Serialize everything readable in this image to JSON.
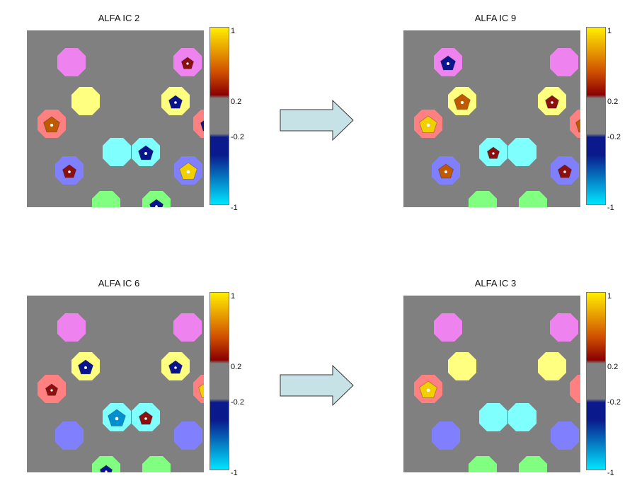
{
  "panels": [
    {
      "title": "ALFA IC 2"
    },
    {
      "title": "ALFA IC 9"
    },
    {
      "title": "ALFA IC 6"
    },
    {
      "title": "ALFA IC 3"
    }
  ],
  "colorbar": {
    "ticks": [
      "1",
      "0.2",
      "-0.2",
      "-1"
    ],
    "colors": [
      "#ffee00",
      "#d05000",
      "#8b0000",
      "#808080",
      "#0a1a8c",
      "#00e5ff"
    ]
  },
  "region_colors": {
    "pink": "#ee82ee",
    "yellow": "#ffff80",
    "red": "#ff8080",
    "cyan": "#80ffff",
    "blue": "#8080ff",
    "green": "#80ff80"
  },
  "blob_colors": {
    "yellow": "#f0d000",
    "orange": "#c05a00",
    "darkred": "#8b1010",
    "darkblue": "#0a148c",
    "lightblue": "#0090d0"
  },
  "arrow_color": "#c6e2e6"
}
